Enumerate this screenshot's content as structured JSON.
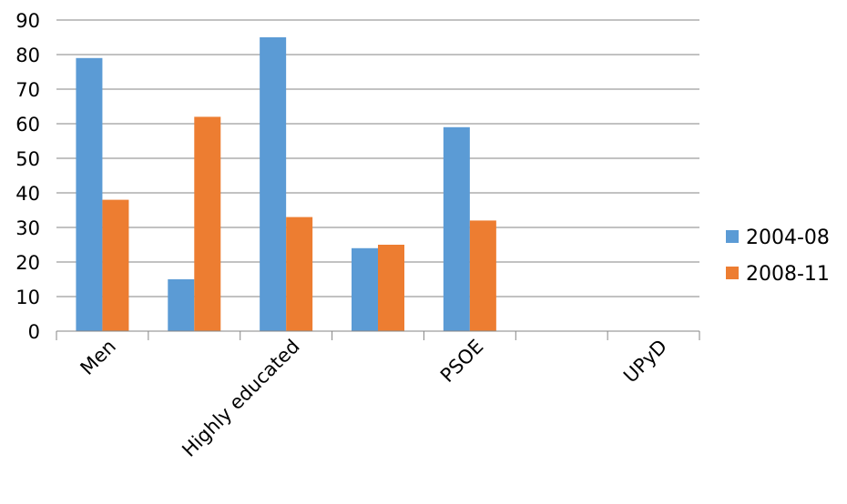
{
  "chart_data": {
    "type": "bar",
    "categories": [
      "Men",
      "",
      "Highly educated",
      "",
      "PSOE",
      "",
      "UPyD"
    ],
    "series": [
      {
        "name": "2004-08",
        "color": "#5B9BD5",
        "values": [
          79,
          15,
          85,
          24,
          59,
          null,
          null
        ]
      },
      {
        "name": "2008-11",
        "color": "#ED7D31",
        "values": [
          38,
          62,
          33,
          25,
          32,
          null,
          null
        ]
      }
    ],
    "ylim": [
      0,
      90
    ],
    "yticks": [
      0,
      10,
      20,
      30,
      40,
      50,
      60,
      70,
      80,
      90
    ],
    "grid": true,
    "legend_position": "right"
  }
}
